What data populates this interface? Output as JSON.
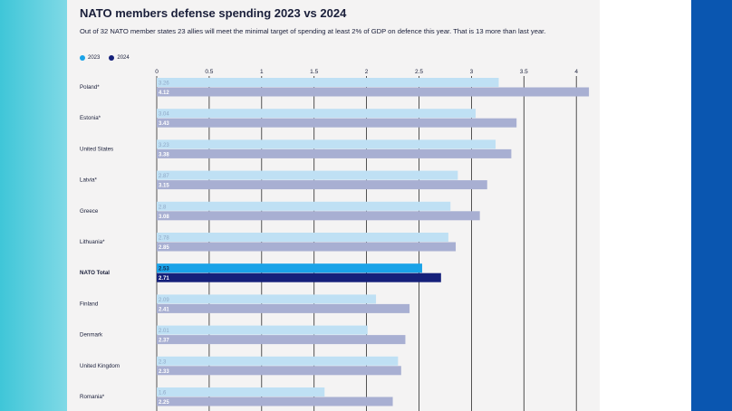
{
  "title": "NATO members defense spending 2023 vs 2024",
  "subtitle": "Out of 32 NATO member states 23 allies will meet the minimal target of spending at least 2% of GDP on defence this year. That is 13 more than last year.",
  "colors": {
    "y2023": "#bfe0f4",
    "y2024": "#a8afd2",
    "total2023": "#1aa3e8",
    "total2024": "#15207a",
    "label2023": "#8fa8c6",
    "label2024": "#ffffff"
  },
  "chart_data": {
    "type": "bar",
    "orientation": "horizontal",
    "title": "NATO members defense spending 2023 vs 2024",
    "xlim": [
      0,
      4.1
    ],
    "x_ticks": [
      "0",
      "0.5",
      "1",
      "1.5",
      "2",
      "2.5",
      "3",
      "3.5",
      "4"
    ],
    "x_tick_values": [
      0,
      0.5,
      1,
      1.5,
      2,
      2.5,
      3,
      3.5,
      4
    ],
    "series": [
      {
        "name": "2023",
        "values": [
          3.26,
          3.04,
          3.23,
          2.87,
          2.8,
          2.78,
          2.53,
          2.09,
          2.01,
          2.3,
          1.6
        ]
      },
      {
        "name": "2024",
        "values": [
          4.12,
          3.43,
          3.38,
          3.15,
          3.08,
          2.85,
          2.71,
          2.41,
          2.37,
          2.33,
          2.25
        ]
      }
    ],
    "value_labels_2023": [
      "3.26",
      "3.04",
      "3.23",
      "2.87",
      "2.8",
      "2.78",
      "2.53",
      "2.09",
      "2.01",
      "2.3",
      "1.6"
    ],
    "value_labels_2024": [
      "4.12",
      "3.43",
      "3.38",
      "3.15",
      "3.08",
      "2.85",
      "2.71",
      "2.41",
      "2.37",
      "2.33",
      "2.25"
    ],
    "categories": [
      "Poland*",
      "Estonia*",
      "United States",
      "Latvia*",
      "Greece",
      "Lithuania*",
      "NATO Total",
      "Finland",
      "Denmark",
      "United Kingdom",
      "Romania*"
    ],
    "highlight": "NATO Total"
  }
}
